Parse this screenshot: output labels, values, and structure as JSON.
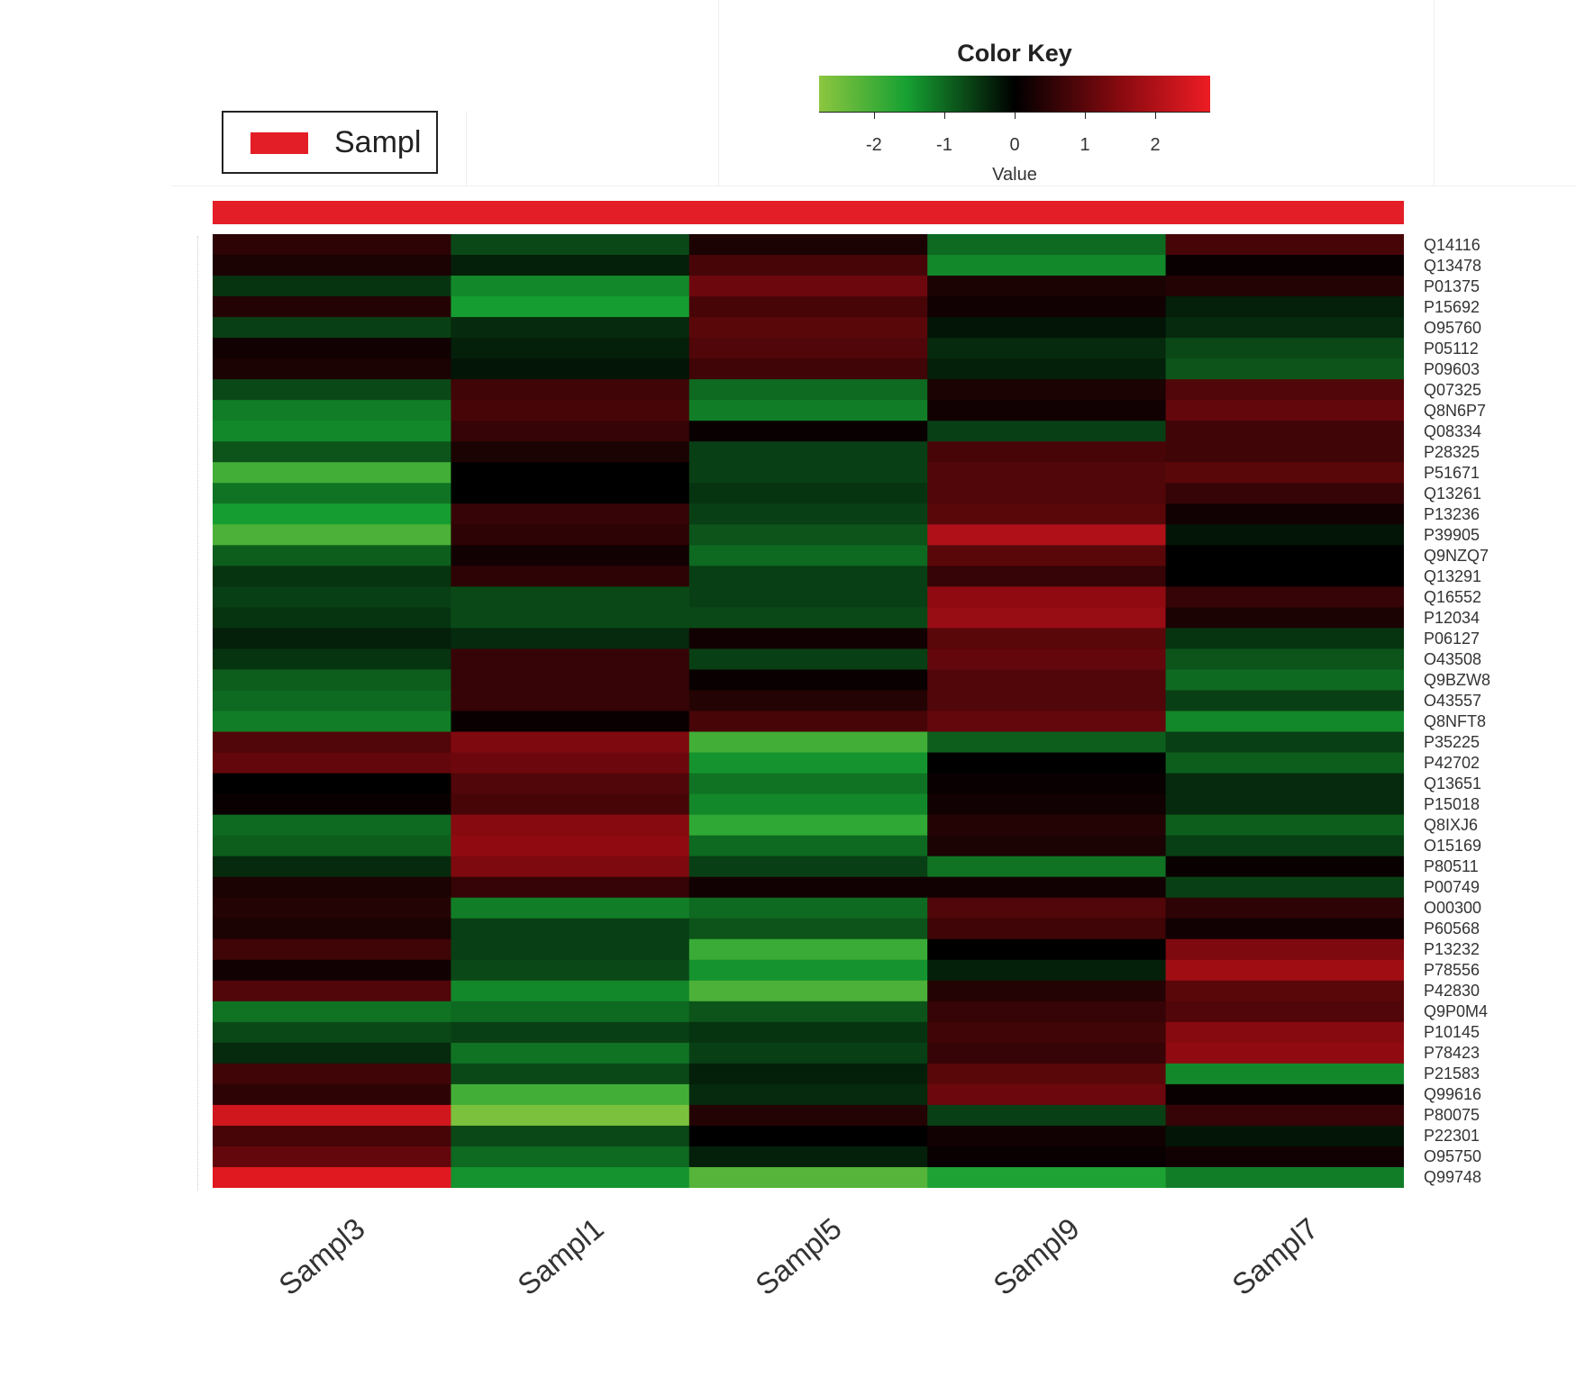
{
  "chart_data": {
    "type": "heatmap",
    "title": "",
    "columns": [
      "Sampl3",
      "Sampl1",
      "Sampl5",
      "Sampl9",
      "Sampl7"
    ],
    "rows": [
      "Q14116",
      "Q13478",
      "P01375",
      "P15692",
      "O95760",
      "P05112",
      "P09603",
      "Q07325",
      "Q8N6P7",
      "Q08334",
      "P28325",
      "P51671",
      "Q13261",
      "P13236",
      "P39905",
      "Q9NZQ7",
      "Q13291",
      "Q16552",
      "P12034",
      "P06127",
      "O43508",
      "Q9BZW8",
      "O43557",
      "Q8NFT8",
      "P35225",
      "P42702",
      "Q13651",
      "P15018",
      "Q8IXJ6",
      "O15169",
      "P80511",
      "P00749",
      "O00300",
      "P60568",
      "P13232",
      "P78556",
      "P42830",
      "Q9P0M4",
      "P10145",
      "P78423",
      "P21583",
      "Q99616",
      "P80075",
      "P22301",
      "O95750",
      "Q99748"
    ],
    "values": [
      [
        0.5,
        -0.7,
        0.3,
        -1.0,
        0.8
      ],
      [
        0.3,
        -0.3,
        0.8,
        -1.3,
        0.1
      ],
      [
        -0.5,
        -1.3,
        1.2,
        0.3,
        0.4
      ],
      [
        0.4,
        -1.5,
        0.8,
        0.2,
        -0.3
      ],
      [
        -0.6,
        -0.4,
        1.0,
        -0.2,
        -0.4
      ],
      [
        0.2,
        -0.3,
        0.9,
        -0.4,
        -0.7
      ],
      [
        0.3,
        -0.2,
        0.7,
        -0.3,
        -0.8
      ],
      [
        -0.7,
        0.7,
        -1.0,
        0.3,
        0.9
      ],
      [
        -1.2,
        0.8,
        -1.2,
        0.2,
        1.1
      ],
      [
        -1.3,
        0.6,
        0.1,
        -0.6,
        0.7
      ],
      [
        -0.8,
        0.3,
        -0.6,
        0.8,
        0.7
      ],
      [
        -2.0,
        0.0,
        -0.6,
        0.9,
        1.0
      ],
      [
        -1.1,
        0.0,
        -0.5,
        0.9,
        0.6
      ],
      [
        -1.5,
        0.6,
        -0.6,
        1.0,
        0.2
      ],
      [
        -2.1,
        0.5,
        -0.8,
        2.0,
        -0.2
      ],
      [
        -0.9,
        0.2,
        -1.0,
        1.0,
        0.0
      ],
      [
        -0.5,
        0.5,
        -0.6,
        0.6,
        0.0
      ],
      [
        -0.6,
        -0.7,
        -0.6,
        1.6,
        0.6
      ],
      [
        -0.5,
        -0.7,
        -0.7,
        1.7,
        0.3
      ],
      [
        -0.3,
        -0.4,
        0.2,
        1.0,
        -0.5
      ],
      [
        -0.5,
        0.6,
        -0.6,
        1.1,
        -0.8
      ],
      [
        -0.9,
        0.6,
        0.1,
        0.9,
        -1.0
      ],
      [
        -1.0,
        0.6,
        0.4,
        0.9,
        -0.6
      ],
      [
        -1.2,
        0.1,
        0.8,
        1.1,
        -1.3
      ],
      [
        0.9,
        1.4,
        -2.0,
        -0.9,
        -0.6
      ],
      [
        1.1,
        1.2,
        -1.4,
        0.0,
        -0.9
      ],
      [
        0.0,
        0.9,
        -1.1,
        0.1,
        -0.4
      ],
      [
        0.1,
        0.8,
        -1.3,
        0.2,
        -0.4
      ],
      [
        -1.0,
        1.5,
        -1.8,
        0.4,
        -0.9
      ],
      [
        -0.9,
        1.6,
        -1.0,
        0.3,
        -0.6
      ],
      [
        -0.4,
        1.4,
        -0.6,
        -1.1,
        0.1
      ],
      [
        0.3,
        0.6,
        0.2,
        0.2,
        -0.6
      ],
      [
        0.4,
        -1.2,
        -1.0,
        0.9,
        0.5
      ],
      [
        0.3,
        -0.6,
        -0.8,
        0.7,
        0.2
      ],
      [
        0.7,
        -0.6,
        -1.9,
        0.0,
        1.4
      ],
      [
        0.2,
        -0.7,
        -1.4,
        -0.3,
        1.8
      ],
      [
        0.9,
        -1.3,
        -2.1,
        0.4,
        1.0
      ],
      [
        -1.1,
        -1.0,
        -0.8,
        0.6,
        0.9
      ],
      [
        -0.7,
        -0.6,
        -0.5,
        0.7,
        1.5
      ],
      [
        -0.4,
        -1.1,
        -0.6,
        0.6,
        1.6
      ],
      [
        0.7,
        -0.7,
        -0.3,
        1.0,
        -1.3
      ],
      [
        0.5,
        -2.0,
        -0.4,
        1.2,
        0.1
      ],
      [
        2.4,
        -2.6,
        0.4,
        -0.6,
        0.6
      ],
      [
        0.8,
        -0.7,
        0.0,
        0.2,
        -0.2
      ],
      [
        1.1,
        -1.0,
        -0.3,
        0.1,
        0.2
      ],
      [
        2.6,
        -1.4,
        -2.2,
        -1.6,
        -1.2
      ]
    ],
    "color_key": {
      "title": "Color Key",
      "xlabel": "Value",
      "range": [
        -2.78,
        2.78
      ],
      "ticks": [
        -2,
        -1,
        0,
        1,
        2
      ],
      "tick_labels": [
        "-2",
        "-1",
        "0",
        "1",
        "2"
      ],
      "colors": {
        "low_light": "#8cc63f",
        "low": "#16a032",
        "mid": "#000000",
        "high": "#8a0a10",
        "high_light": "#ee1c24"
      }
    },
    "legend": {
      "entries": [
        {
          "label": "Sampl",
          "color": "#e41e26"
        }
      ],
      "placement": "top-left"
    },
    "column_side_color": "#e41e26"
  }
}
